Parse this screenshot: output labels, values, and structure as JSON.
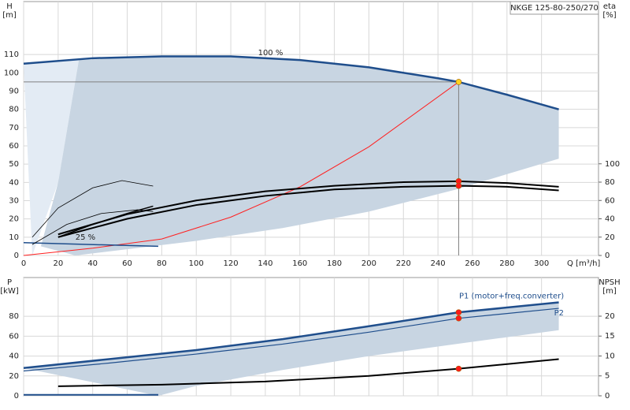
{
  "chart_data": [
    {
      "type": "line",
      "title": "NKGE 125-80-250/270",
      "ylabel": [
        "H",
        "[m]"
      ],
      "y2label": [
        "eta",
        "[%]"
      ],
      "xlabel": "Q [m³/h]",
      "annotations": [
        "100 %",
        "25 %"
      ],
      "xlim": [
        0,
        333
      ],
      "xticks": [
        0,
        20,
        40,
        60,
        80,
        100,
        120,
        140,
        160,
        180,
        200,
        220,
        240,
        260,
        280,
        300
      ],
      "ylim": [
        0,
        139
      ],
      "yticks": [
        0,
        10,
        20,
        30,
        40,
        50,
        60,
        70,
        80,
        90,
        100,
        110
      ],
      "y2lim": [
        0,
        277
      ],
      "y2ticks": [
        0,
        20,
        40,
        60,
        80,
        100
      ],
      "grid": true,
      "series": [
        {
          "kind": "area",
          "color": "#e3ebf4",
          "x": [
            0,
            32,
            20,
            5
          ],
          "values": [
            105,
            107,
            40,
            0
          ]
        },
        {
          "kind": "area",
          "color": "#c8d5e2",
          "x": [
            32,
            80,
            120,
            160,
            200,
            240,
            280,
            310,
            310,
            250,
            200,
            150,
            100,
            30,
            10,
            20
          ],
          "values": [
            107,
            109,
            109,
            107,
            103,
            97,
            88,
            80,
            53,
            36,
            24,
            15,
            8,
            0,
            5,
            40
          ]
        },
        {
          "kind": "line",
          "color": "#808080",
          "width": 1,
          "x": [
            0,
            252,
            252
          ],
          "values": [
            95,
            95,
            0
          ]
        },
        {
          "kind": "line",
          "color": "#ff2020",
          "width": 1,
          "x": [
            0,
            40,
            80,
            120,
            160,
            200,
            252
          ],
          "values": [
            0,
            4,
            9,
            21,
            37.5,
            59.5,
            95
          ]
        },
        {
          "kind": "line",
          "color": "#1f4e8c",
          "width": 1.5,
          "x": [
            0,
            78
          ],
          "values": [
            7,
            5
          ]
        },
        {
          "kind": "line",
          "color": "#000000",
          "width": 0.8,
          "x": [
            5,
            20,
            40,
            57,
            75
          ],
          "values": [
            10,
            26,
            37,
            41,
            38
          ]
        },
        {
          "kind": "line",
          "color": "#000000",
          "width": 0.8,
          "x": [
            5,
            25,
            45,
            66,
            75
          ],
          "values": [
            6,
            17,
            23,
            25,
            24
          ]
        },
        {
          "kind": "line",
          "color": "#000000",
          "width": 1.5,
          "x": [
            20,
            40,
            60,
            75
          ],
          "values": [
            10,
            17,
            23,
            27
          ]
        },
        {
          "kind": "line",
          "color": "#1f4e8c",
          "width": 2.5,
          "x": [
            0,
            40,
            80,
            120,
            160,
            200,
            240,
            252,
            280,
            310
          ],
          "values": [
            105,
            108,
            109,
            109,
            107,
            103,
            97,
            95,
            88,
            80
          ]
        },
        {
          "kind": "line",
          "color": "#000000",
          "width": 2,
          "axis": "y2",
          "x": [
            20,
            60,
            100,
            140,
            180,
            220,
            252,
            280,
            310
          ],
          "values": [
            23,
            45,
            60,
            70,
            76,
            80,
            81,
            79,
            75
          ]
        },
        {
          "kind": "line",
          "color": "#000000",
          "width": 2,
          "axis": "y2",
          "x": [
            20,
            60,
            100,
            140,
            180,
            220,
            252,
            280,
            310
          ],
          "values": [
            20,
            40,
            55,
            65,
            72,
            75,
            76,
            75,
            71
          ]
        },
        {
          "kind": "points",
          "color": "#ffd21f",
          "x": [
            252
          ],
          "values": [
            95
          ]
        },
        {
          "kind": "points",
          "color": "#ff1a1a",
          "axis": "y2",
          "x": [
            252,
            252
          ],
          "values": [
            81,
            76
          ]
        }
      ]
    },
    {
      "type": "line",
      "ylabel": [
        "P",
        "[kW]"
      ],
      "y2label": [
        "NPSH",
        "[m]"
      ],
      "xlim": [
        0,
        333
      ],
      "ylim": [
        0,
        119
      ],
      "yticks": [
        0,
        20,
        40,
        60,
        80
      ],
      "y2lim": [
        0,
        29.7
      ],
      "y2ticks": [
        0,
        5,
        10,
        15,
        20
      ],
      "grid": true,
      "series": [
        {
          "kind": "area",
          "color": "#c8d5e2",
          "x": [
            0,
            50,
            100,
            150,
            200,
            252,
            310,
            310,
            250,
            200,
            150,
            100,
            78
          ],
          "values": [
            28,
            37,
            46,
            57,
            70,
            84,
            94,
            66,
            52,
            40,
            26,
            10,
            0
          ]
        },
        {
          "kind": "line",
          "color": "#1f4e8c",
          "width": 2,
          "x": [
            0,
            78
          ],
          "values": [
            1,
            1
          ]
        },
        {
          "name": "P1 (motor+freq.converter)",
          "kind": "line",
          "color": "#1f4e8c",
          "width": 2.5,
          "x": [
            0,
            50,
            100,
            150,
            200,
            252,
            310
          ],
          "values": [
            28,
            37,
            46,
            57,
            70,
            84,
            94
          ]
        },
        {
          "name": "P2",
          "kind": "line",
          "color": "#1f4e8c",
          "width": 1.2,
          "x": [
            0,
            50,
            100,
            150,
            200,
            252,
            310
          ],
          "values": [
            25,
            33,
            42,
            52,
            64,
            78,
            88
          ]
        },
        {
          "kind": "line",
          "color": "#000000",
          "width": 2,
          "axis": "y2",
          "x": [
            20,
            80,
            140,
            200,
            252,
            310
          ],
          "values": [
            2.4,
            2.8,
            3.6,
            5.0,
            6.8,
            9.2
          ]
        },
        {
          "kind": "points",
          "color": "#ff1a1a",
          "x": [
            252,
            252
          ],
          "values": [
            84,
            78
          ]
        },
        {
          "kind": "points",
          "color": "#ff1a1a",
          "axis": "y2",
          "x": [
            252
          ],
          "values": [
            6.8
          ]
        }
      ]
    }
  ]
}
